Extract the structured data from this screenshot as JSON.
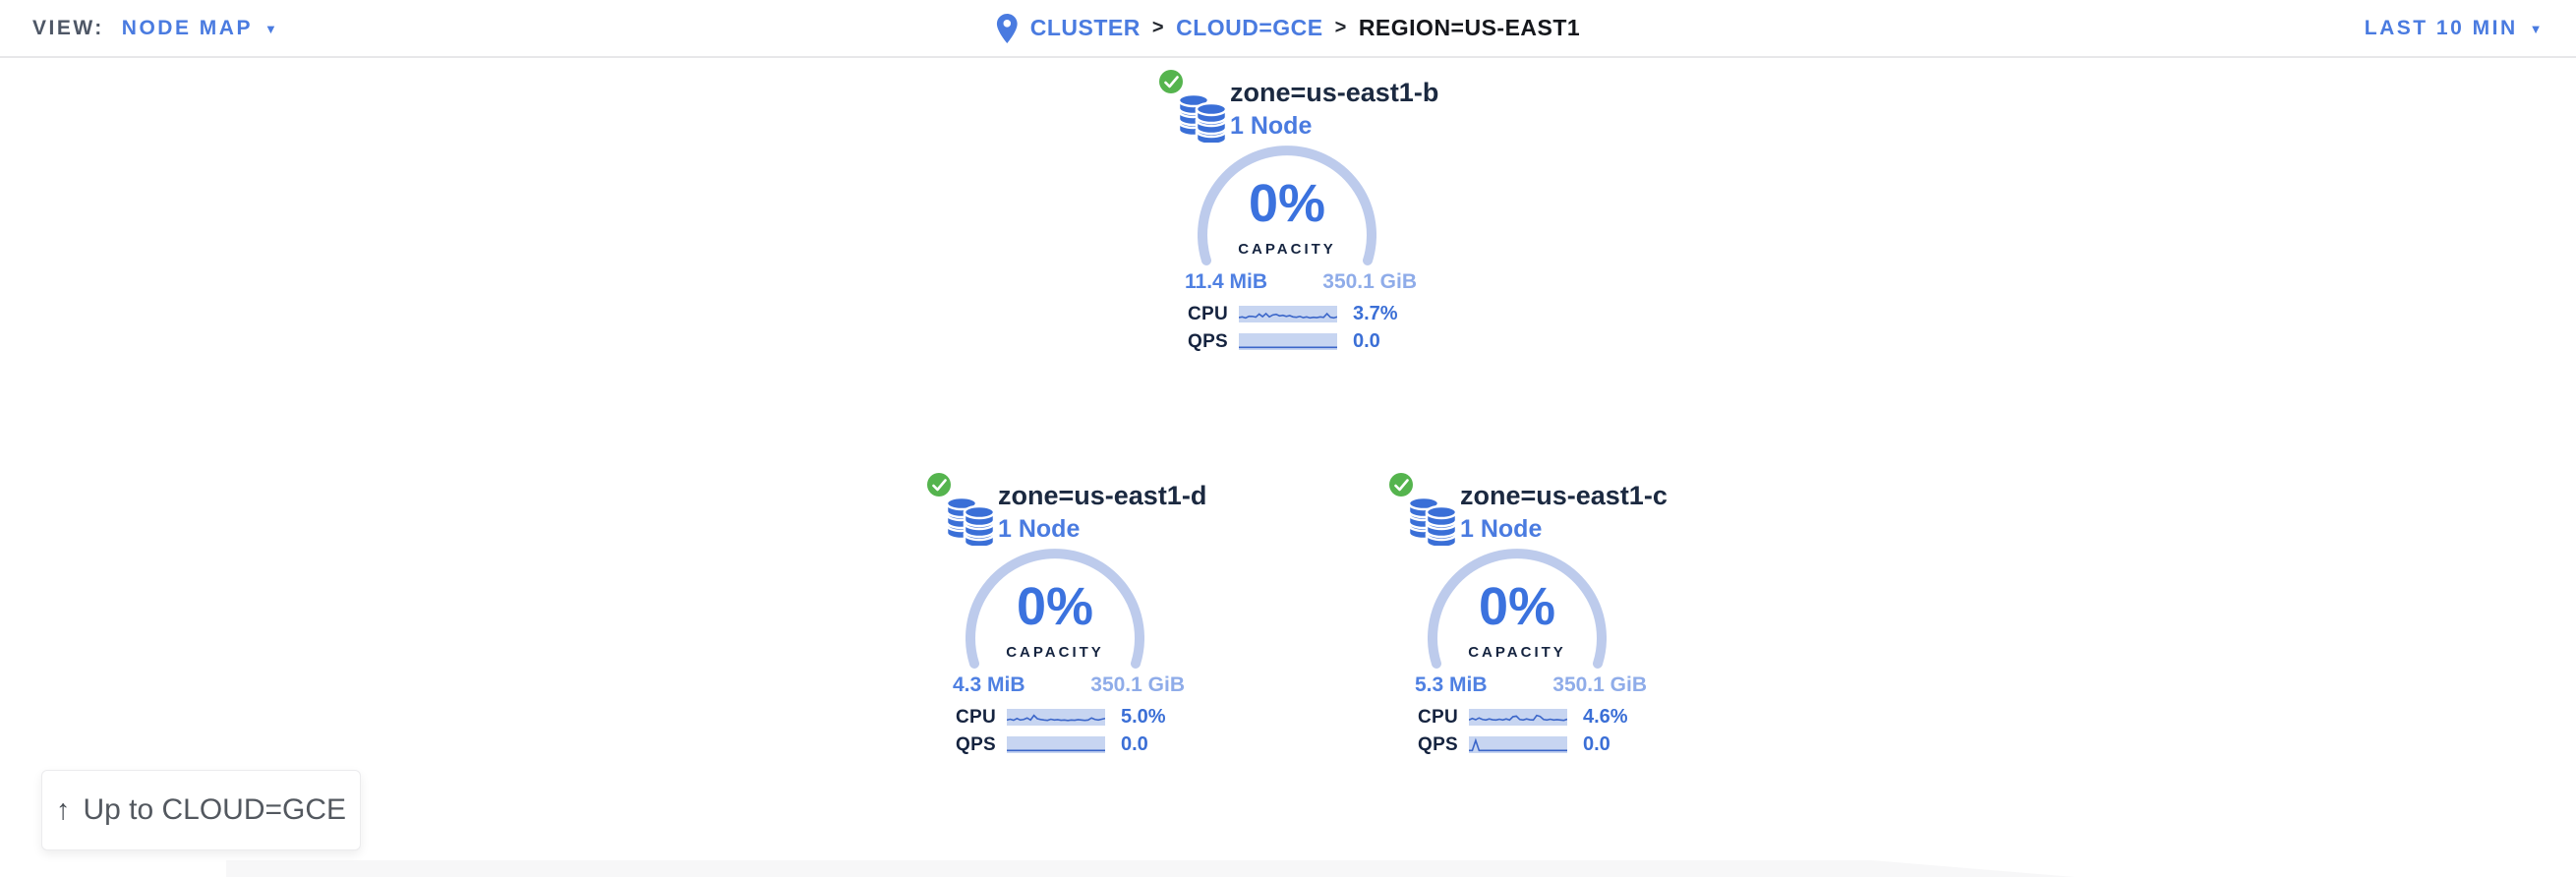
{
  "topbar": {
    "view_label": "VIEW:",
    "view_value": "NODE MAP",
    "breadcrumb": {
      "separator": ">",
      "items": [
        {
          "label": "CLUSTER"
        },
        {
          "label": "CLOUD=GCE"
        },
        {
          "label": "REGION=US-EAST1"
        }
      ]
    },
    "time_range": "LAST 10 MIN"
  },
  "zones": [
    {
      "name": "zone=us-east1-b",
      "nodes": "1 Node",
      "status": "healthy",
      "capacity_pct": "0%",
      "capacity_label": "CAPACITY",
      "capacity_used": "11.4 MiB",
      "capacity_total": "350.1 GiB",
      "cpu_label": "CPU",
      "cpu_value": "3.7%",
      "qps_label": "QPS",
      "qps_value": "0.0",
      "cpu_spark": [
        0.25,
        0.3,
        0.22,
        0.35,
        0.34,
        0.28,
        0.52,
        0.32,
        0.56,
        0.3,
        0.45,
        0.5,
        0.38,
        0.42,
        0.34,
        0.4,
        0.3,
        0.27,
        0.34,
        0.24,
        0.3,
        0.22,
        0.27,
        0.24,
        0.3,
        0.26,
        0.55,
        0.27,
        0.22,
        0.3
      ],
      "qps_spark": [
        0.07,
        0.07,
        0.07,
        0.07,
        0.07,
        0.07,
        0.07,
        0.07,
        0.07,
        0.07,
        0.07,
        0.07,
        0.07,
        0.07,
        0.07,
        0.07,
        0.07,
        0.07,
        0.07,
        0.07,
        0.07,
        0.07,
        0.07,
        0.07,
        0.07,
        0.07,
        0.07,
        0.07,
        0.07,
        0.07
      ]
    },
    {
      "name": "zone=us-east1-d",
      "nodes": "1 Node",
      "status": "healthy",
      "capacity_pct": "0%",
      "capacity_label": "CAPACITY",
      "capacity_used": "4.3 MiB",
      "capacity_total": "350.1 GiB",
      "cpu_label": "CPU",
      "cpu_value": "5.0%",
      "qps_label": "QPS",
      "qps_value": "0.0",
      "cpu_spark": [
        0.3,
        0.36,
        0.28,
        0.42,
        0.3,
        0.34,
        0.46,
        0.3,
        0.66,
        0.4,
        0.34,
        0.3,
        0.27,
        0.36,
        0.3,
        0.33,
        0.28,
        0.3,
        0.26,
        0.3,
        0.28,
        0.33,
        0.3,
        0.27,
        0.3,
        0.46,
        0.34,
        0.3,
        0.36,
        0.42
      ],
      "qps_spark": [
        0.07,
        0.07,
        0.07,
        0.07,
        0.07,
        0.07,
        0.07,
        0.07,
        0.07,
        0.07,
        0.07,
        0.07,
        0.07,
        0.07,
        0.07,
        0.07,
        0.07,
        0.07,
        0.07,
        0.07,
        0.07,
        0.07,
        0.07,
        0.07,
        0.07,
        0.07,
        0.07,
        0.07,
        0.07,
        0.07
      ]
    },
    {
      "name": "zone=us-east1-c",
      "nodes": "1 Node",
      "status": "healthy",
      "capacity_pct": "0%",
      "capacity_label": "CAPACITY",
      "capacity_used": "5.3 MiB",
      "capacity_total": "350.1 GiB",
      "cpu_label": "CPU",
      "cpu_value": "4.6%",
      "qps_label": "QPS",
      "qps_value": "0.0",
      "cpu_spark": [
        0.3,
        0.42,
        0.32,
        0.46,
        0.34,
        0.3,
        0.38,
        0.32,
        0.3,
        0.36,
        0.3,
        0.38,
        0.3,
        0.56,
        0.6,
        0.34,
        0.3,
        0.38,
        0.32,
        0.3,
        0.66,
        0.58,
        0.34,
        0.3,
        0.36,
        0.3,
        0.33,
        0.3,
        0.27,
        0.36
      ],
      "qps_spark": [
        0.07,
        0.07,
        0.85,
        0.07,
        0.07,
        0.07,
        0.07,
        0.07,
        0.07,
        0.07,
        0.07,
        0.07,
        0.07,
        0.07,
        0.07,
        0.07,
        0.07,
        0.07,
        0.07,
        0.07,
        0.07,
        0.07,
        0.07,
        0.07,
        0.07,
        0.07,
        0.07,
        0.07,
        0.07,
        0.07
      ]
    }
  ],
  "up_button": {
    "label": "Up to CLOUD=GCE",
    "icon": "up-arrow"
  },
  "colors": {
    "accent_blue": "#4a7be0",
    "gauge_text_blue": "#3b72de",
    "gauge_arc": "#bdcbec",
    "spark_band": "#c7d5f1",
    "spark_line": "#3b66c9",
    "healthy_green": "#55b44e",
    "dark_text": "#15233f"
  }
}
